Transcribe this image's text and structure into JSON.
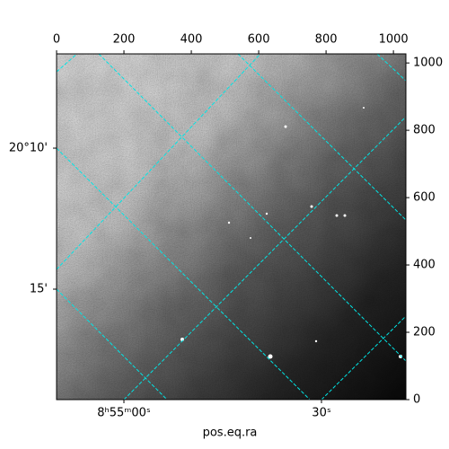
{
  "chart_data": {
    "type": "image",
    "xlabel": "pos.eq.ra",
    "xlim": [
      0,
      1037
    ],
    "xticks": [
      0,
      200,
      400,
      600,
      800,
      1000
    ],
    "ylim": [
      0,
      1027
    ],
    "yticks": [
      0,
      200,
      400,
      600,
      800,
      1000
    ],
    "ra_ticks": [
      "8ʰ55ᵐ00ˢ",
      "30ˢ"
    ],
    "dec_ticks": [
      "20°10'",
      "15'"
    ]
  }
}
